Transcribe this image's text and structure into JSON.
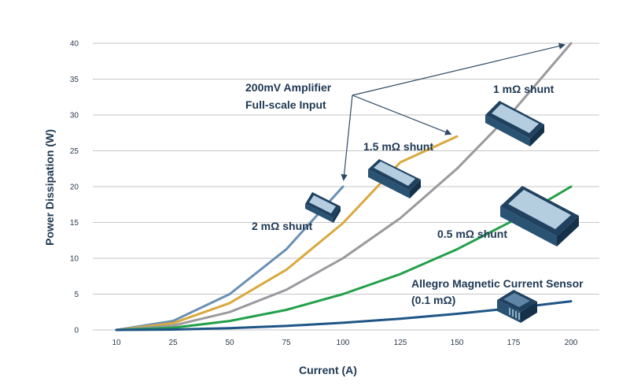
{
  "chart_data": {
    "type": "line",
    "xlabel": "Current (A)",
    "ylabel": "Power Dissipation (W)",
    "x_ticks": [
      "10",
      "25",
      "50",
      "75",
      "100",
      "125",
      "150",
      "175",
      "200"
    ],
    "y_ticks": [
      "0",
      "5",
      "10",
      "15",
      "20",
      "25",
      "30",
      "35",
      "40"
    ],
    "ylim": [
      0,
      40
    ],
    "grid": "horizontal",
    "series": [
      {
        "name": "2 mΩ shunt",
        "color": "#6a8fb4",
        "x": [
          10,
          25,
          50,
          75,
          100
        ],
        "y": [
          0,
          1.25,
          5,
          11.25,
          20
        ]
      },
      {
        "name": "1.5 mΩ shunt",
        "color": "#d9a93e",
        "x": [
          10,
          25,
          50,
          75,
          100,
          125,
          150
        ],
        "y": [
          0,
          0.95,
          3.75,
          8.4,
          14.9,
          23.4,
          27
        ]
      },
      {
        "name": "1 mΩ shunt",
        "color": "#9a9a9e",
        "x": [
          10,
          25,
          50,
          75,
          100,
          125,
          150,
          175,
          200
        ],
        "y": [
          0,
          0.6,
          2.5,
          5.6,
          10,
          15.6,
          22.5,
          30.6,
          40
        ]
      },
      {
        "name": "0.5 mΩ shunt",
        "color": "#22a04a",
        "x": [
          10,
          25,
          50,
          75,
          100,
          125,
          150,
          175,
          200
        ],
        "y": [
          0,
          0.3,
          1.25,
          2.8,
          5,
          7.8,
          11.25,
          15.3,
          20
        ]
      },
      {
        "name": "Allegro Magnetic Current Sensor (0.1 mΩ)",
        "color": "#1e5585",
        "x": [
          10,
          25,
          50,
          75,
          100,
          125,
          150,
          175,
          200
        ],
        "y": [
          0,
          0.06,
          0.25,
          0.56,
          1,
          1.56,
          2.25,
          3.06,
          4
        ]
      }
    ],
    "annotations": {
      "amplifier_line1": "200mV Amplifier",
      "amplifier_line2": "Full-scale Input",
      "label_2mohm": "2 mΩ shunt",
      "label_1_5mohm": "1.5 mΩ shunt",
      "label_1mohm": "1 mΩ shunt",
      "label_0_5mohm": "0.5 mΩ shunt",
      "label_allegro_line1": "Allegro Magnetic Current Sensor",
      "label_allegro_line2": "(0.1 mΩ)"
    },
    "arrow_targets": [
      {
        "x": 100,
        "y": 20
      },
      {
        "x": 150,
        "y": 27
      },
      {
        "x": 200,
        "y": 40
      }
    ],
    "colors": {
      "axis_text": "#2b3b4c",
      "title_text": "#1e3853",
      "arrow": "#2d4a63",
      "component_top": "#b4cee0",
      "component_side": "#20415f"
    }
  }
}
